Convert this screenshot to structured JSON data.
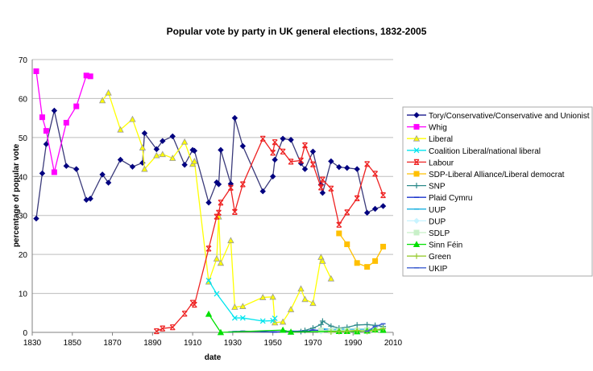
{
  "chart_data": {
    "type": "line",
    "title": "Popular vote by party in UK general elections, 1832-2005",
    "xlabel": "date",
    "ylabel": "percentage of popular vote",
    "xlim": [
      1830,
      2010
    ],
    "ylim": [
      0,
      70
    ],
    "xticks": [
      1830,
      1850,
      1870,
      1890,
      1910,
      1930,
      1950,
      1970,
      1990,
      2010
    ],
    "yticks": [
      0,
      10,
      20,
      30,
      40,
      50,
      60,
      70
    ],
    "grid": "horizontal",
    "legend_placement": "right",
    "series": [
      {
        "name": "Tory/Conservative/Conservative and Unionist",
        "color": "#000080",
        "marker": "diamond",
        "x": [
          1832,
          1835,
          1837,
          1841,
          1847,
          1852,
          1857,
          1859,
          1865,
          1868,
          1874,
          1880,
          1885,
          1886,
          1892,
          1895,
          1900,
          1906,
          1910,
          1910.9,
          1918,
          1922,
          1923,
          1924,
          1929,
          1931,
          1935,
          1945,
          1950,
          1951,
          1955,
          1959,
          1964,
          1966,
          1970,
          1974,
          1974.8,
          1979,
          1983,
          1987,
          1992,
          1997,
          2001,
          2005
        ],
        "y": [
          29.2,
          40.8,
          48.3,
          56.9,
          42.7,
          41.9,
          34.0,
          34.3,
          40.5,
          38.4,
          44.3,
          42.5,
          43.5,
          51.1,
          47.0,
          49.1,
          50.3,
          43.0,
          46.8,
          46.6,
          33.3,
          38.5,
          38.0,
          46.8,
          38.1,
          55.0,
          47.8,
          36.2,
          40.0,
          44.3,
          49.7,
          49.4,
          43.4,
          41.9,
          46.4,
          37.9,
          35.8,
          43.9,
          42.4,
          42.2,
          41.9,
          30.7,
          31.7,
          32.4
        ]
      },
      {
        "name": "Whig",
        "color": "#ff00ff",
        "marker": "square",
        "x": [
          1832,
          1835,
          1837,
          1841,
          1847,
          1852,
          1857,
          1859
        ],
        "y": [
          67.0,
          55.2,
          51.7,
          41.1,
          53.8,
          58.0,
          65.9,
          65.7
        ]
      },
      {
        "name": "Liberal",
        "color": "#ffff00",
        "marker": "triangle",
        "x": [
          1865,
          1868,
          1874,
          1880,
          1885,
          1886,
          1892,
          1895,
          1900,
          1906,
          1910,
          1910.9,
          1918,
          1922,
          1923,
          1924,
          1929,
          1931,
          1935,
          1945,
          1950,
          1951,
          1955,
          1959,
          1964,
          1966,
          1970,
          1974,
          1974.8,
          1979
        ],
        "y": [
          59.5,
          61.5,
          52.0,
          54.7,
          47.4,
          41.9,
          45.4,
          45.7,
          44.7,
          48.9,
          43.2,
          43.9,
          13.0,
          18.9,
          29.7,
          17.8,
          23.6,
          6.5,
          6.7,
          9.0,
          9.1,
          2.5,
          2.7,
          5.9,
          11.2,
          8.5,
          7.5,
          19.3,
          18.3,
          13.8
        ]
      },
      {
        "name": "Coalition Liberal/national liberal",
        "color": "#00e5ee",
        "marker": "x",
        "x": [
          1918,
          1922,
          1931,
          1935,
          1945,
          1950,
          1951
        ],
        "y": [
          13.3,
          9.9,
          3.7,
          3.7,
          2.9,
          3.0,
          3.6
        ]
      },
      {
        "name": "Labour",
        "color": "#ee2222",
        "marker": "asterisk",
        "x": [
          1892,
          1895,
          1900,
          1906,
          1910,
          1910.9,
          1918,
          1922,
          1923,
          1924,
          1929,
          1931,
          1935,
          1945,
          1950,
          1951,
          1955,
          1959,
          1964,
          1966,
          1970,
          1974,
          1974.8,
          1979,
          1983,
          1987,
          1992,
          1997,
          2001,
          2005
        ],
        "y": [
          0.3,
          1.0,
          1.3,
          4.8,
          7.6,
          7.1,
          21.5,
          29.7,
          30.7,
          33.3,
          37.1,
          30.9,
          38.0,
          49.7,
          46.1,
          48.8,
          46.4,
          43.8,
          44.1,
          48.0,
          43.1,
          37.2,
          39.2,
          36.9,
          27.6,
          30.8,
          34.4,
          43.2,
          40.7,
          35.2
        ]
      },
      {
        "name": "SDP-Liberal Alliance/Liberal democrat",
        "color": "#ffc000",
        "marker": "square",
        "x": [
          1983,
          1987,
          1992,
          1997,
          2001,
          2005
        ],
        "y": [
          25.4,
          22.6,
          17.8,
          16.8,
          18.3,
          22.0
        ]
      },
      {
        "name": "SNP",
        "color": "#2e8b8b",
        "marker": "plus",
        "x": [
          1964,
          1966,
          1970,
          1974,
          1974.8,
          1979,
          1983,
          1987,
          1992,
          1997,
          2001,
          2005
        ],
        "y": [
          0.2,
          0.5,
          1.1,
          2.0,
          2.9,
          1.6,
          1.1,
          1.3,
          1.9,
          2.0,
          1.8,
          1.5
        ]
      },
      {
        "name": "Plaid Cymru",
        "color": "#1a33cc",
        "marker": "dash",
        "x": [
          1929,
          1931,
          1935,
          1945,
          1950,
          1951,
          1955,
          1959,
          1964,
          1966,
          1970,
          1974,
          1974.8,
          1979,
          1983,
          1987,
          1992,
          1997,
          2001,
          2005
        ],
        "y": [
          0.1,
          0.2,
          0.3,
          0.2,
          0.1,
          0.1,
          0.2,
          0.3,
          0.3,
          0.2,
          0.6,
          0.5,
          0.6,
          0.4,
          0.4,
          0.4,
          0.5,
          0.5,
          0.7,
          0.6
        ]
      },
      {
        "name": "UUP",
        "color": "#1ab0e0",
        "marker": "dash",
        "x": [
          1974,
          1974.8,
          1979,
          1983,
          1987,
          1992,
          1997,
          2001,
          2005
        ],
        "y": [
          0.8,
          0.9,
          0.8,
          0.8,
          0.8,
          0.8,
          0.8,
          0.8,
          0.5
        ]
      },
      {
        "name": "DUP",
        "color": "#c8f4ff",
        "marker": "diamond",
        "x": [
          1974,
          1979,
          1983,
          1987,
          1992,
          1997,
          2001,
          2005
        ],
        "y": [
          0.2,
          0.2,
          0.5,
          0.3,
          0.3,
          0.3,
          0.7,
          0.9
        ]
      },
      {
        "name": "SDLP",
        "color": "#c8f0c8",
        "marker": "square",
        "x": [
          1974,
          1979,
          1983,
          1987,
          1992,
          1997,
          2001,
          2005
        ],
        "y": [
          0.5,
          0.4,
          0.4,
          0.5,
          0.5,
          0.6,
          0.6,
          0.5
        ]
      },
      {
        "name": "Sinn Féin",
        "color": "#00e000",
        "marker": "triangle",
        "x": [
          1918,
          1924,
          1955,
          1959,
          1983,
          1987,
          1992,
          1997,
          2001,
          2005
        ],
        "y": [
          4.7,
          0.0,
          0.6,
          0.1,
          0.3,
          0.3,
          0.2,
          0.4,
          0.7,
          0.6
        ]
      },
      {
        "name": "Green",
        "color": "#99cc33",
        "marker": "plus",
        "x": [
          1979,
          1983,
          1987,
          1992,
          1997,
          2001,
          2005
        ],
        "y": [
          0.1,
          0.2,
          0.3,
          0.5,
          0.2,
          0.6,
          1.0
        ]
      },
      {
        "name": "UKIP",
        "color": "#4060d0",
        "marker": "dash",
        "x": [
          1997,
          2001,
          2005
        ],
        "y": [
          0.3,
          1.5,
          2.2
        ]
      }
    ]
  }
}
